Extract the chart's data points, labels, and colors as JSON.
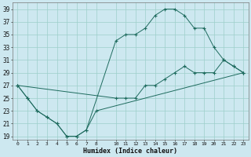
{
  "xlabel": "Humidex (Indice chaleur)",
  "bg_color": "#cde8f0",
  "line_color": "#1e6b5e",
  "grid_color": "#9dcfca",
  "ylim": [
    18.5,
    40
  ],
  "yticks": [
    19,
    21,
    23,
    25,
    27,
    29,
    31,
    33,
    35,
    37,
    39
  ],
  "xlim": [
    -0.5,
    23.5
  ],
  "xticks": [
    0,
    1,
    2,
    3,
    4,
    5,
    6,
    7,
    8,
    10,
    11,
    12,
    13,
    14,
    15,
    16,
    17,
    18,
    19,
    20,
    21,
    22,
    23
  ],
  "line1_x": [
    0,
    1,
    2,
    3,
    4,
    5,
    6,
    7,
    10,
    11,
    12,
    13,
    14,
    15,
    16,
    17,
    18,
    19,
    20,
    21,
    22,
    23
  ],
  "line1_y": [
    27,
    25,
    23,
    22,
    21,
    19,
    19,
    20,
    34,
    35,
    35,
    36,
    38,
    39,
    39,
    38,
    36,
    36,
    33,
    31,
    30,
    29
  ],
  "line2_x": [
    0,
    1,
    2,
    3,
    4,
    5,
    6,
    7,
    8,
    23
  ],
  "line2_y": [
    27,
    25,
    23,
    22,
    21,
    19,
    19,
    20,
    23,
    29
  ],
  "line3_x": [
    0,
    10,
    11,
    12,
    13,
    14,
    15,
    16,
    17,
    18,
    19,
    20,
    21,
    22,
    23
  ],
  "line3_y": [
    27,
    25,
    25,
    25,
    27,
    27,
    28,
    29,
    30,
    29,
    29,
    29,
    31,
    30,
    29
  ]
}
